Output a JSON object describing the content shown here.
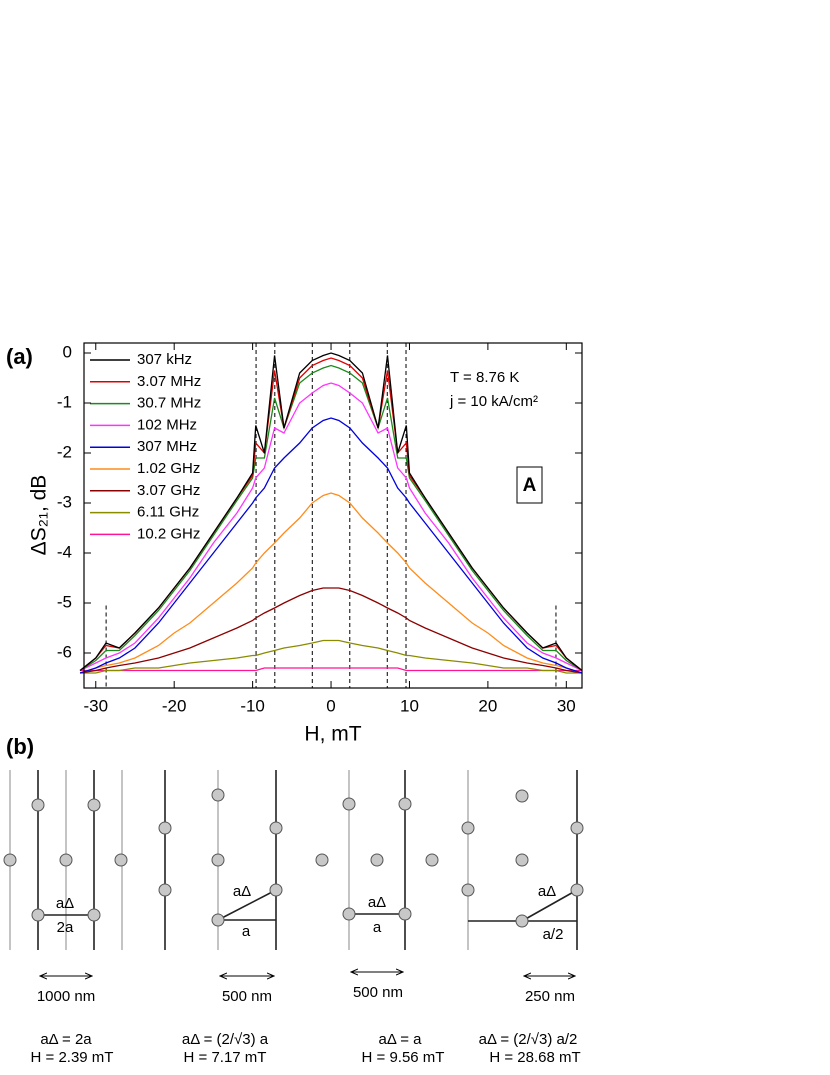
{
  "chart_data": {
    "type": "line",
    "x_label": "H, mT",
    "y_label": "ΔS₂₁, dB",
    "xlim": [
      -31.5,
      32
    ],
    "ylim": [
      -6.7,
      0.2
    ],
    "xticks": [
      -30,
      -20,
      -10,
      0,
      10,
      20,
      30
    ],
    "yticks": [
      0,
      -1,
      -2,
      -3,
      -4,
      -5,
      -6
    ],
    "legend": "top-left",
    "annotations": [
      "T = 8.76 K",
      "j = 10 kA/cm²",
      "A"
    ],
    "vlines": [
      {
        "x": -28.68,
        "ymax": -5.05
      },
      {
        "x": -9.56,
        "ymax": 0.2
      },
      {
        "x": -7.17,
        "ymax": 0.2
      },
      {
        "x": -2.39,
        "ymax": 0.2
      },
      {
        "x": 2.39,
        "ymax": 0.2
      },
      {
        "x": 7.17,
        "ymax": 0.2
      },
      {
        "x": 9.56,
        "ymax": 0.2
      },
      {
        "x": 28.68,
        "ymax": -5.05
      }
    ],
    "x": [
      -32,
      -30,
      -28.7,
      -27,
      -25,
      -22,
      -20,
      -18,
      -15,
      -12,
      -10,
      -9.6,
      -8.5,
      -7.2,
      -6,
      -4,
      -2.4,
      -1,
      0,
      1,
      2.4,
      4,
      6,
      7.2,
      8.5,
      9.6,
      10,
      12,
      15,
      18,
      20,
      22,
      25,
      27,
      28.7,
      30,
      32
    ],
    "series": [
      {
        "name": "307 kHz",
        "color": "#000000",
        "values": [
          -6.35,
          -6.1,
          -5.8,
          -5.9,
          -5.6,
          -5.1,
          -4.7,
          -4.3,
          -3.6,
          -2.9,
          -2.4,
          -1.45,
          -2.0,
          -0.05,
          -1.5,
          -0.4,
          -0.15,
          -0.05,
          0,
          -0.05,
          -0.15,
          -0.4,
          -1.5,
          -0.05,
          -2.0,
          -1.45,
          -2.4,
          -2.9,
          -3.6,
          -4.3,
          -4.7,
          -5.1,
          -5.6,
          -5.9,
          -5.8,
          -6.1,
          -6.35
        ]
      },
      {
        "name": "3.07 MHz",
        "color": "#e00000",
        "values": [
          -6.35,
          -6.1,
          -5.85,
          -5.9,
          -5.6,
          -5.1,
          -4.7,
          -4.3,
          -3.6,
          -2.9,
          -2.45,
          -1.8,
          -2.0,
          -0.35,
          -1.5,
          -0.5,
          -0.25,
          -0.15,
          -0.1,
          -0.15,
          -0.25,
          -0.5,
          -1.5,
          -0.35,
          -2.0,
          -1.8,
          -2.45,
          -2.9,
          -3.6,
          -4.3,
          -4.7,
          -5.1,
          -5.6,
          -5.9,
          -5.85,
          -6.1,
          -6.35
        ]
      },
      {
        "name": "30.7 MHz",
        "color": "#1a8a1a",
        "values": [
          -6.35,
          -6.15,
          -5.95,
          -5.95,
          -5.65,
          -5.15,
          -4.75,
          -4.35,
          -3.65,
          -2.95,
          -2.5,
          -2.1,
          -2.1,
          -0.9,
          -1.5,
          -0.6,
          -0.4,
          -0.3,
          -0.25,
          -0.3,
          -0.4,
          -0.6,
          -1.5,
          -0.9,
          -2.1,
          -2.1,
          -2.5,
          -2.95,
          -3.65,
          -4.35,
          -4.75,
          -5.15,
          -5.65,
          -5.95,
          -5.95,
          -6.15,
          -6.35
        ]
      },
      {
        "name": "102 MHz",
        "color": "#ff33ff",
        "values": [
          -6.35,
          -6.2,
          -6.1,
          -6.0,
          -5.8,
          -5.3,
          -4.9,
          -4.5,
          -3.8,
          -3.2,
          -2.7,
          -2.5,
          -2.3,
          -1.5,
          -1.6,
          -1.0,
          -0.8,
          -0.65,
          -0.6,
          -0.65,
          -0.8,
          -1.0,
          -1.6,
          -1.5,
          -2.3,
          -2.5,
          -2.7,
          -3.2,
          -3.8,
          -4.5,
          -4.9,
          -5.3,
          -5.8,
          -6.0,
          -6.1,
          -6.2,
          -6.35
        ]
      },
      {
        "name": "307 MHz",
        "color": "#0000e0",
        "values": [
          -6.4,
          -6.3,
          -6.2,
          -6.1,
          -5.9,
          -5.4,
          -5.0,
          -4.6,
          -4.0,
          -3.4,
          -3.0,
          -2.9,
          -2.7,
          -2.3,
          -2.1,
          -1.8,
          -1.5,
          -1.35,
          -1.3,
          -1.35,
          -1.5,
          -1.8,
          -2.1,
          -2.3,
          -2.7,
          -2.9,
          -3.0,
          -3.4,
          -4.0,
          -4.6,
          -5.0,
          -5.4,
          -5.9,
          -6.1,
          -6.2,
          -6.3,
          -6.4
        ]
      },
      {
        "name": "1.02 GHz",
        "color": "#ff8c1a",
        "values": [
          -6.4,
          -6.3,
          -6.25,
          -6.2,
          -6.1,
          -5.85,
          -5.6,
          -5.4,
          -5.0,
          -4.6,
          -4.3,
          -4.2,
          -4.0,
          -3.8,
          -3.6,
          -3.3,
          -3.0,
          -2.85,
          -2.8,
          -2.85,
          -3.0,
          -3.3,
          -3.6,
          -3.8,
          -4.0,
          -4.2,
          -4.3,
          -4.6,
          -5.0,
          -5.4,
          -5.6,
          -5.85,
          -6.1,
          -6.2,
          -6.25,
          -6.3,
          -6.4
        ]
      },
      {
        "name": "3.07 GHz",
        "color": "#8b0000",
        "values": [
          -6.4,
          -6.35,
          -6.3,
          -6.25,
          -6.2,
          -6.1,
          -6.0,
          -5.9,
          -5.7,
          -5.5,
          -5.35,
          -5.3,
          -5.2,
          -5.1,
          -5.0,
          -4.85,
          -4.75,
          -4.7,
          -4.7,
          -4.7,
          -4.75,
          -4.85,
          -5.0,
          -5.1,
          -5.2,
          -5.3,
          -5.35,
          -5.5,
          -5.7,
          -5.9,
          -6.0,
          -6.1,
          -6.2,
          -6.25,
          -6.3,
          -6.35,
          -6.4
        ]
      },
      {
        "name": "6.11 GHz",
        "color": "#8b8b00",
        "values": [
          -6.4,
          -6.4,
          -6.35,
          -6.35,
          -6.3,
          -6.3,
          -6.25,
          -6.2,
          -6.15,
          -6.1,
          -6.05,
          -6.05,
          -6.0,
          -5.95,
          -5.9,
          -5.85,
          -5.8,
          -5.75,
          -5.75,
          -5.75,
          -5.8,
          -5.85,
          -5.9,
          -5.95,
          -6.0,
          -6.05,
          -6.05,
          -6.1,
          -6.15,
          -6.2,
          -6.25,
          -6.3,
          -6.3,
          -6.35,
          -6.35,
          -6.4,
          -6.4
        ]
      },
      {
        "name": "10.2 GHz",
        "color": "#ff1493",
        "values": [
          -6.35,
          -6.35,
          -6.35,
          -6.35,
          -6.35,
          -6.35,
          -6.35,
          -6.35,
          -6.35,
          -6.35,
          -6.35,
          -6.35,
          -6.3,
          -6.3,
          -6.3,
          -6.3,
          -6.3,
          -6.3,
          -6.3,
          -6.3,
          -6.3,
          -6.3,
          -6.3,
          -6.3,
          -6.3,
          -6.35,
          -6.35,
          -6.35,
          -6.35,
          -6.35,
          -6.35,
          -6.35,
          -6.35,
          -6.35,
          -6.35,
          -6.35,
          -6.35
        ]
      }
    ]
  },
  "panel_labels": [
    "(a)",
    "(b)"
  ],
  "lattice_panels": [
    {
      "side": "aΔ",
      "base": "2a",
      "scale": "1000 nm",
      "formula": "aΔ = 2a",
      "field": "H = 2.39 mT"
    },
    {
      "side": "aΔ",
      "base": "a",
      "scale": "500 nm",
      "formula": "aΔ = (2/√3) a",
      "field": "H = 7.17 mT"
    },
    {
      "side": "aΔ",
      "base": "a",
      "scale": "500 nm",
      "formula": "aΔ = a",
      "field": "H = 9.56 mT"
    },
    {
      "side": "aΔ",
      "base": "a/2",
      "scale": "250 nm",
      "formula": "aΔ = (2/√3) a/2",
      "field": "H = 28.68 mT"
    }
  ]
}
